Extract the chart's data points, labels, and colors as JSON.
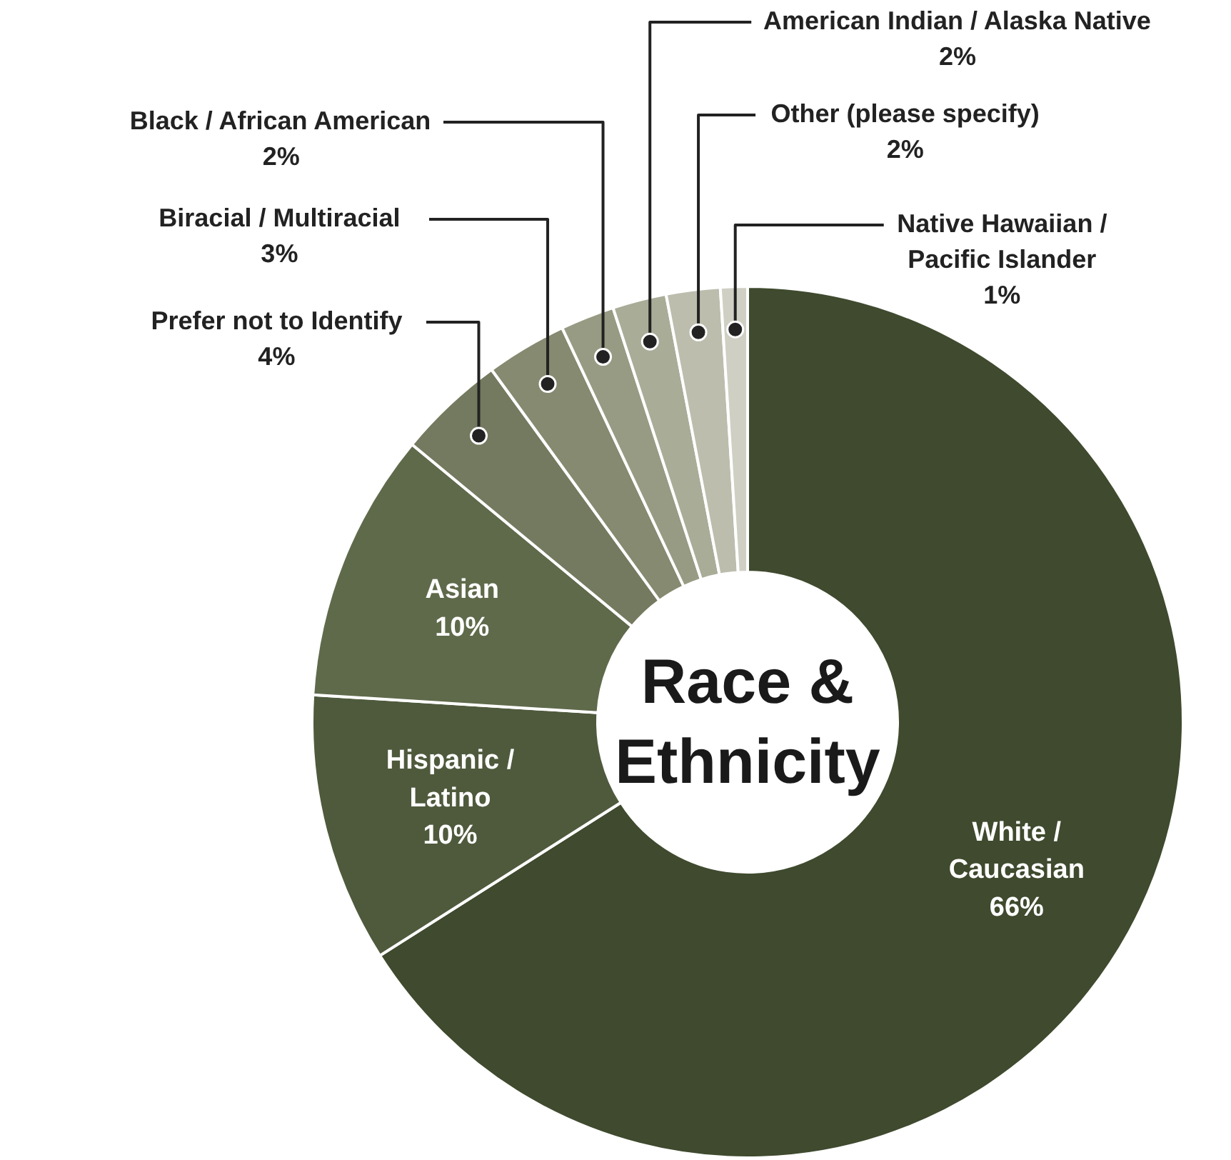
{
  "chart_data": {
    "type": "donut",
    "title": "Race &\nEthnicity",
    "categories": [
      "White / Caucasian",
      "Hispanic / Latino",
      "Asian",
      "Prefer not to Identify",
      "Biracial / Multiracial",
      "Black / African American",
      "American Indian / Alaska Native",
      "Other (please specify)",
      "Native Hawaiian / Pacific Islander"
    ],
    "values": [
      66,
      10,
      10,
      4,
      3,
      2,
      2,
      2,
      1
    ],
    "value_labels": [
      "66%",
      "10%",
      "10%",
      "4%",
      "3%",
      "2%",
      "2%",
      "2%",
      "1%"
    ],
    "colors": [
      "#3f4a2e",
      "#4f5a3d",
      "#5f6a4b",
      "#747a5f",
      "#858a70",
      "#979b83",
      "#a9ac97",
      "#bcbdad",
      "#cfcfc4"
    ]
  }
}
